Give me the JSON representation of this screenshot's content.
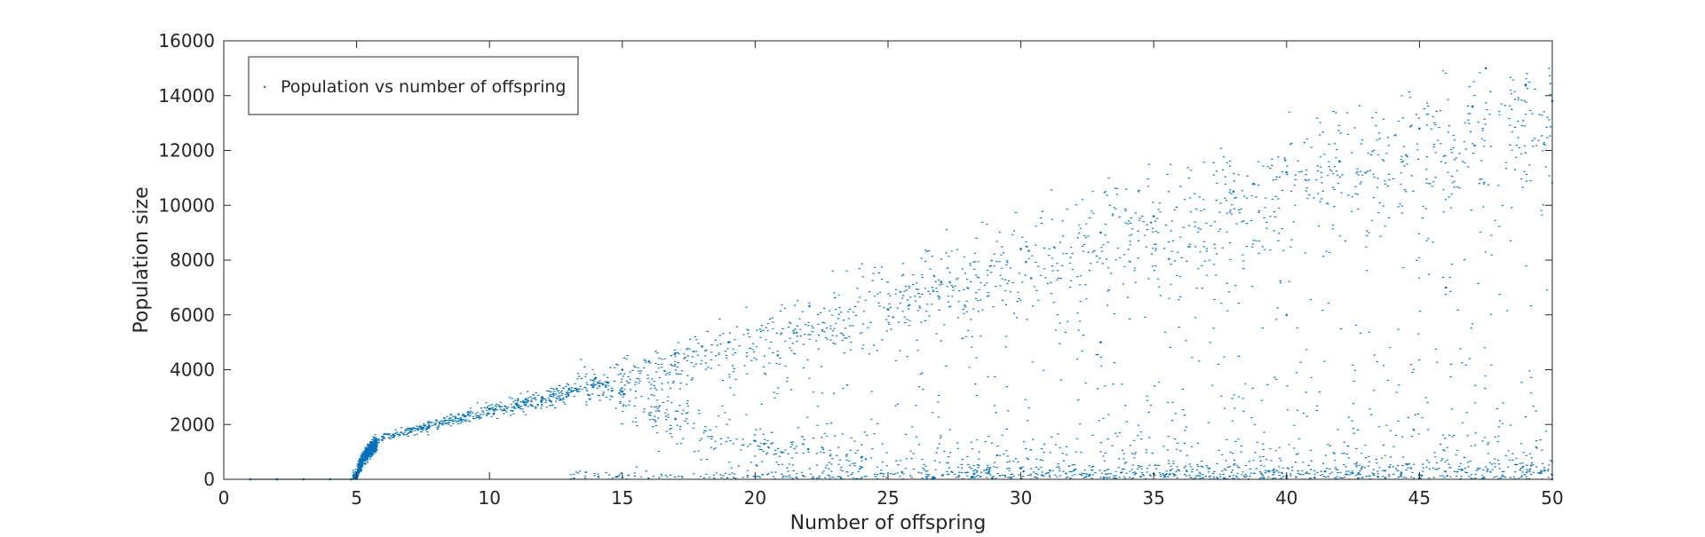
{
  "chart_data": {
    "type": "scatter",
    "xlabel": "Number of offspring",
    "ylabel": "Population size",
    "xlim": [
      0,
      50
    ],
    "ylim": [
      0,
      16000
    ],
    "xticks": [
      0,
      5,
      10,
      15,
      20,
      25,
      30,
      35,
      40,
      45,
      50
    ],
    "xtick_labels": [
      "0",
      "5",
      "10",
      "15",
      "20",
      "25",
      "30",
      "35",
      "40",
      "45",
      "50"
    ],
    "yticks": [
      0,
      2000,
      4000,
      6000,
      8000,
      10000,
      12000,
      14000,
      16000
    ],
    "ytick_labels": [
      "0",
      "2000",
      "4000",
      "6000",
      "8000",
      "10000",
      "12000",
      "14000",
      "16000"
    ],
    "grid": false,
    "legend": {
      "position": "top-left",
      "entries": [
        "Population vs  number of offspring"
      ]
    },
    "series": [
      {
        "name": "Population vs  number of offspring",
        "color": "#0072BD",
        "points": [
          [
            1,
            0
          ],
          [
            2,
            0
          ],
          [
            3,
            0
          ],
          [
            4,
            0
          ],
          [
            4.8,
            0
          ],
          [
            5.1,
            300
          ],
          [
            5.3,
            900
          ],
          [
            5.6,
            1300
          ],
          [
            6,
            1550
          ],
          [
            7,
            1850
          ],
          [
            8,
            2150
          ],
          [
            9,
            2350
          ],
          [
            10,
            2550
          ],
          [
            11,
            2750
          ],
          [
            12,
            2950
          ],
          [
            13,
            3300
          ],
          [
            14,
            3700
          ],
          [
            15,
            4000
          ],
          [
            16,
            4300
          ],
          [
            17,
            4600
          ],
          [
            18,
            4850
          ],
          [
            19,
            5000
          ],
          [
            15,
            3200
          ],
          [
            17,
            2200
          ],
          [
            20,
            1400
          ],
          [
            22,
            1100
          ],
          [
            24,
            800
          ],
          [
            25,
            6200
          ],
          [
            27,
            7200
          ],
          [
            30,
            8400
          ],
          [
            33,
            9000
          ],
          [
            35,
            9600
          ],
          [
            38,
            10500
          ],
          [
            40,
            11200
          ],
          [
            42,
            11600
          ],
          [
            45,
            12800
          ],
          [
            47,
            13600
          ],
          [
            47.5,
            15000
          ],
          [
            49,
            14400
          ],
          [
            50,
            13800
          ],
          [
            30,
            400
          ],
          [
            35,
            200
          ],
          [
            40,
            100
          ],
          [
            45,
            50
          ],
          [
            50,
            0
          ],
          [
            33,
            5000
          ],
          [
            40,
            6000
          ],
          [
            46,
            7000
          ]
        ]
      }
    ]
  }
}
